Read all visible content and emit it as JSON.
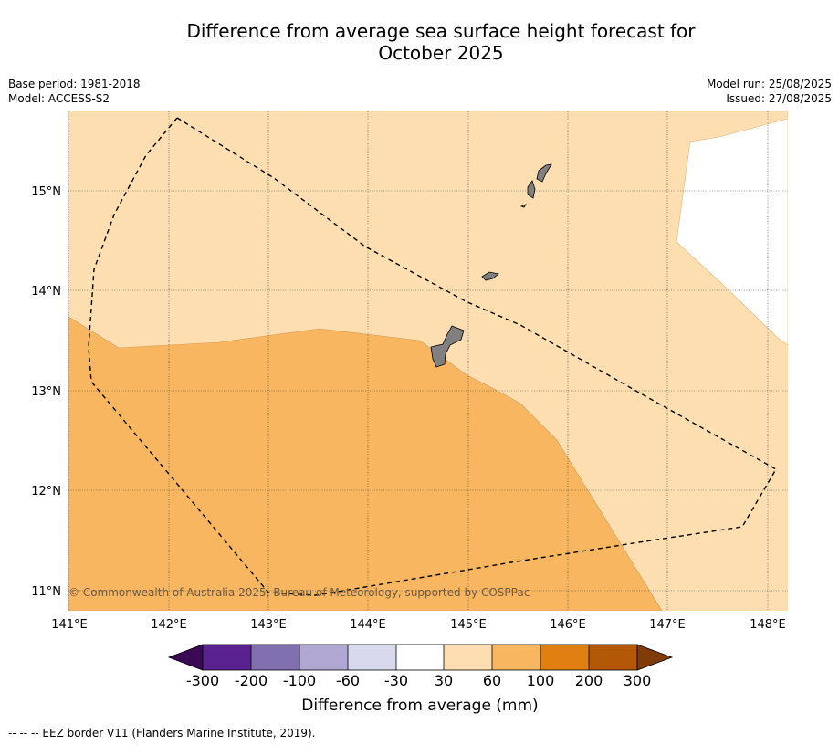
{
  "header": {
    "title_line1": "Difference from average sea surface height forecast for",
    "title_line2": "October 2025",
    "base_period": "Base period: 1981-2018",
    "model": "Model: ACCESS-S2",
    "model_run": "Model run: 25/08/2025",
    "issued": "Issued: 27/08/2025"
  },
  "map": {
    "lon_range": [
      141.0,
      148.2
    ],
    "lat_range": [
      10.8,
      15.8
    ],
    "lon_ticks": [
      "141°E",
      "142°E",
      "143°E",
      "144°E",
      "145°E",
      "146°E",
      "147°E",
      "148°E"
    ],
    "lat_ticks": [
      "11°N",
      "12°N",
      "13°N",
      "14°N",
      "15°N"
    ],
    "copyright": "© Commonwealth of Australia 2025, Bureau of Meteorology, supported by COSPPac",
    "colors": {
      "low": "#fddeb1",
      "mid": "#f9b660",
      "land": "#808080",
      "neutral": "#ffffff"
    }
  },
  "colorbar": {
    "title": "Difference from average (mm)",
    "labels": [
      "-300",
      "-200",
      "-100",
      "-60",
      "-30",
      "30",
      "60",
      "100",
      "200",
      "300"
    ],
    "colors": [
      "#3b0a54",
      "#5a2290",
      "#8170b1",
      "#b0a8d2",
      "#d9d9ed",
      "#ffffff",
      "#fddeb1",
      "#f9b660",
      "#e08012",
      "#b35807",
      "#7f3b08"
    ]
  },
  "footnote": "--  --  -- EEZ border V11 (Flanders Marine Institute, 2019)."
}
